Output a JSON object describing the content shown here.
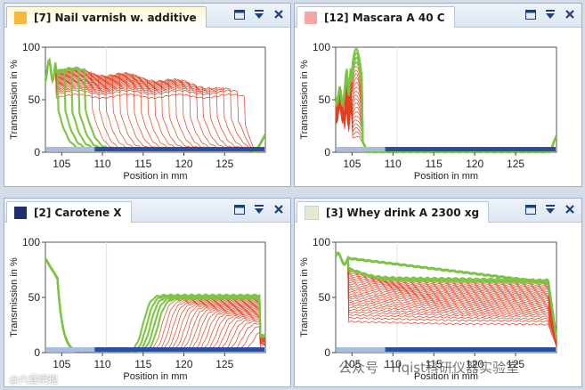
{
  "panels": [
    {
      "id": "p1",
      "title": "[7] Nail varnish w. additive",
      "swatch_color": "#f6b93b",
      "active": true,
      "chart_data": {
        "type": "line",
        "title": "[7] Nail varnish w. additive",
        "xlabel": "Position in mm",
        "ylabel": "Transmission in %",
        "xlim": [
          103.0,
          130.0
        ],
        "ylim": [
          0,
          100
        ],
        "xticks": [
          105,
          110,
          115,
          120,
          125
        ],
        "yticks": [
          0,
          50,
          100
        ],
        "profile_family": {
          "count": 28,
          "shape": "plateau_front_back",
          "start_level": 55,
          "end_level": 82,
          "front_from": 104.5,
          "front_to": 127.5,
          "back_edge": 127.5,
          "series_colors": [
            "#e23a1e",
            "#7cc243"
          ]
        }
      }
    },
    {
      "id": "p2",
      "title": "[12] Mascara A 40 C",
      "swatch_color": "#f4a6a6",
      "active": false,
      "chart_data": {
        "type": "line",
        "title": "[12] Mascara A 40 C",
        "xlabel": "Position in mm",
        "ylabel": "Transmission in %",
        "xlim": [
          103.0,
          130.0
        ],
        "ylim": [
          0,
          100
        ],
        "xticks": [
          105,
          110,
          115,
          120,
          125
        ],
        "yticks": [
          0,
          50,
          100
        ],
        "profile_family": {
          "count": 22,
          "shape": "spike",
          "spike_start": 105.0,
          "spike_end": 106.3,
          "spike_low": 15,
          "spike_high": 98,
          "series_colors": [
            "#e23a1e",
            "#7cc243"
          ]
        }
      }
    },
    {
      "id": "p3",
      "title": "[2] Carotene X",
      "swatch_color": "#1f2f6e",
      "active": false,
      "chart_data": {
        "type": "line",
        "title": "[2] Carotene X",
        "xlabel": "Position in mm",
        "ylabel": "Transmission in %",
        "xlim": [
          103.0,
          130.0
        ],
        "ylim": [
          0,
          100
        ],
        "xticks": [
          105,
          110,
          115,
          120,
          125
        ],
        "yticks": [
          0,
          50,
          100
        ],
        "profile_family": {
          "count": 28,
          "shape": "clear_then_rise",
          "start_level": 22,
          "end_level": 52,
          "front_from": 128.5,
          "front_to": 115.0,
          "back_edge": 129.3,
          "series_colors": [
            "#e23a1e",
            "#7cc243"
          ]
        }
      }
    },
    {
      "id": "p4",
      "title": "[3] Whey drink A 2300 xg",
      "swatch_color": "#e3ead8",
      "active": false,
      "chart_data": {
        "type": "line",
        "title": "[3] Whey drink A 2300 xg",
        "xlabel": "Position in mm",
        "ylabel": "Transmission in %",
        "xlim": [
          103.0,
          130.0
        ],
        "ylim": [
          0,
          100
        ],
        "xticks": [
          105,
          110,
          115,
          120,
          125
        ],
        "yticks": [
          0,
          50,
          100
        ],
        "profile_family": {
          "count": 30,
          "shape": "sloped_plateau",
          "start_level": 28,
          "end_level": 72,
          "front_from": 104.0,
          "front_to": 120.0,
          "back_edge": 129.0,
          "series_colors": [
            "#e23a1e",
            "#7cc243"
          ]
        }
      }
    }
  ],
  "watermark": {
    "text": "公众号 · Hqist科研仪器实验室",
    "small_text": "@六载明琨"
  },
  "icons": {
    "restore": "restore-icon",
    "menu": "dropdown-icon",
    "close": "close-icon"
  }
}
